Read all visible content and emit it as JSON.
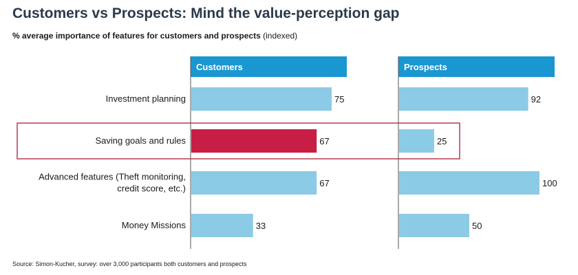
{
  "title": "Customers vs Prospects: Mind the value-perception gap",
  "subtitle": {
    "bold": "% average importance of features for customers and prospects",
    "normal": "(indexed)"
  },
  "source": "Source: Simon-Kucher, survey: over 3,000 participants both customers and prospects",
  "colors": {
    "bar": "#8ccbe6",
    "highlight_bar": "#c81e45",
    "header": "#1a97d1",
    "highlight_box": "#b8394f",
    "axis": "#555555"
  },
  "chart_data": {
    "type": "bar",
    "orientation": "horizontal",
    "categories": [
      [
        "Investment planning"
      ],
      [
        "Saving goals and rules"
      ],
      [
        "Advanced features (Theft monitoring,",
        "credit score, etc.)"
      ],
      [
        "Money Missions"
      ]
    ],
    "highlighted_category_index": 1,
    "xlim": [
      0,
      100
    ],
    "series": [
      {
        "name": "Customers",
        "values": [
          75,
          67,
          67,
          33
        ]
      },
      {
        "name": "Prospects",
        "values": [
          92,
          25,
          100,
          50
        ]
      }
    ]
  }
}
